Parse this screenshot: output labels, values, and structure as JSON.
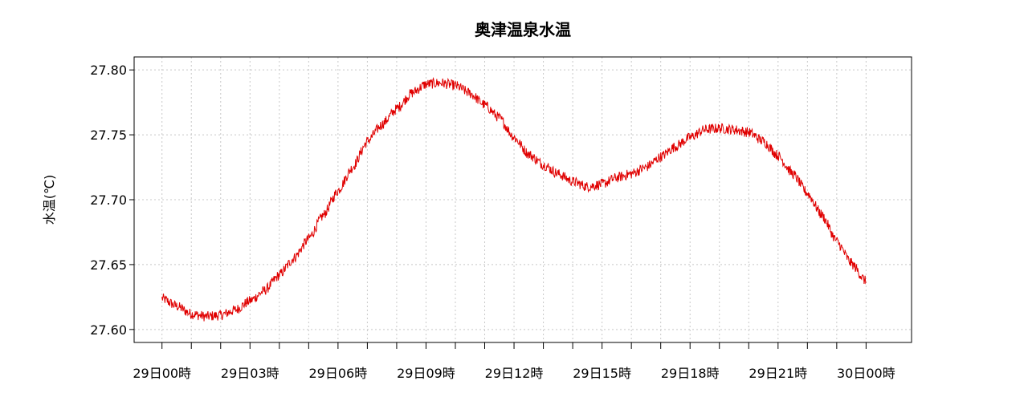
{
  "chart_data": {
    "type": "line",
    "title": "奥津温泉水温",
    "xlabel": "",
    "ylabel": "水温(℃)",
    "ylim": [
      27.59,
      27.81
    ],
    "xlim_hours": [
      -0.95,
      25.55
    ],
    "grid": true,
    "legend": "none",
    "y_ticks": [
      27.6,
      27.65,
      27.7,
      27.75,
      27.8
    ],
    "y_tick_labels": [
      "27.60",
      "27.65",
      "27.70",
      "27.75",
      "27.80"
    ],
    "x_ticks_hours": [
      0,
      3,
      6,
      9,
      12,
      15,
      18,
      21,
      24
    ],
    "x_tick_labels": [
      "29日00時",
      "29日03時",
      "29日06時",
      "29日09時",
      "29日12時",
      "29日15時",
      "29日18時",
      "29日21時",
      "30日00時"
    ],
    "x_minor_step_hours": 1,
    "series": [
      {
        "color": "#e00000",
        "noise_amplitude": 0.004,
        "x_hours": [
          0,
          0.5,
          1,
          1.5,
          2,
          2.5,
          3,
          3.5,
          4,
          4.5,
          5,
          5.5,
          6,
          6.5,
          7,
          7.5,
          8,
          8.5,
          9,
          9.5,
          10,
          10.5,
          11,
          11.5,
          12,
          12.5,
          13,
          13.5,
          14,
          14.5,
          15,
          15.5,
          16,
          16.5,
          17,
          17.5,
          18,
          18.5,
          19,
          19.5,
          20,
          20.5,
          21,
          21.5,
          22,
          22.5,
          23,
          23.5,
          24
        ],
        "values": [
          27.624,
          27.618,
          27.612,
          27.61,
          27.611,
          27.615,
          27.622,
          27.63,
          27.642,
          27.655,
          27.67,
          27.688,
          27.707,
          27.725,
          27.745,
          27.758,
          27.77,
          27.782,
          27.789,
          27.79,
          27.788,
          27.782,
          27.773,
          27.763,
          27.748,
          27.735,
          27.727,
          27.72,
          27.714,
          27.71,
          27.712,
          27.717,
          27.72,
          27.725,
          27.733,
          27.741,
          27.748,
          27.754,
          27.755,
          27.754,
          27.752,
          27.745,
          27.734,
          27.72,
          27.705,
          27.688,
          27.668,
          27.651,
          27.637
        ]
      }
    ]
  }
}
